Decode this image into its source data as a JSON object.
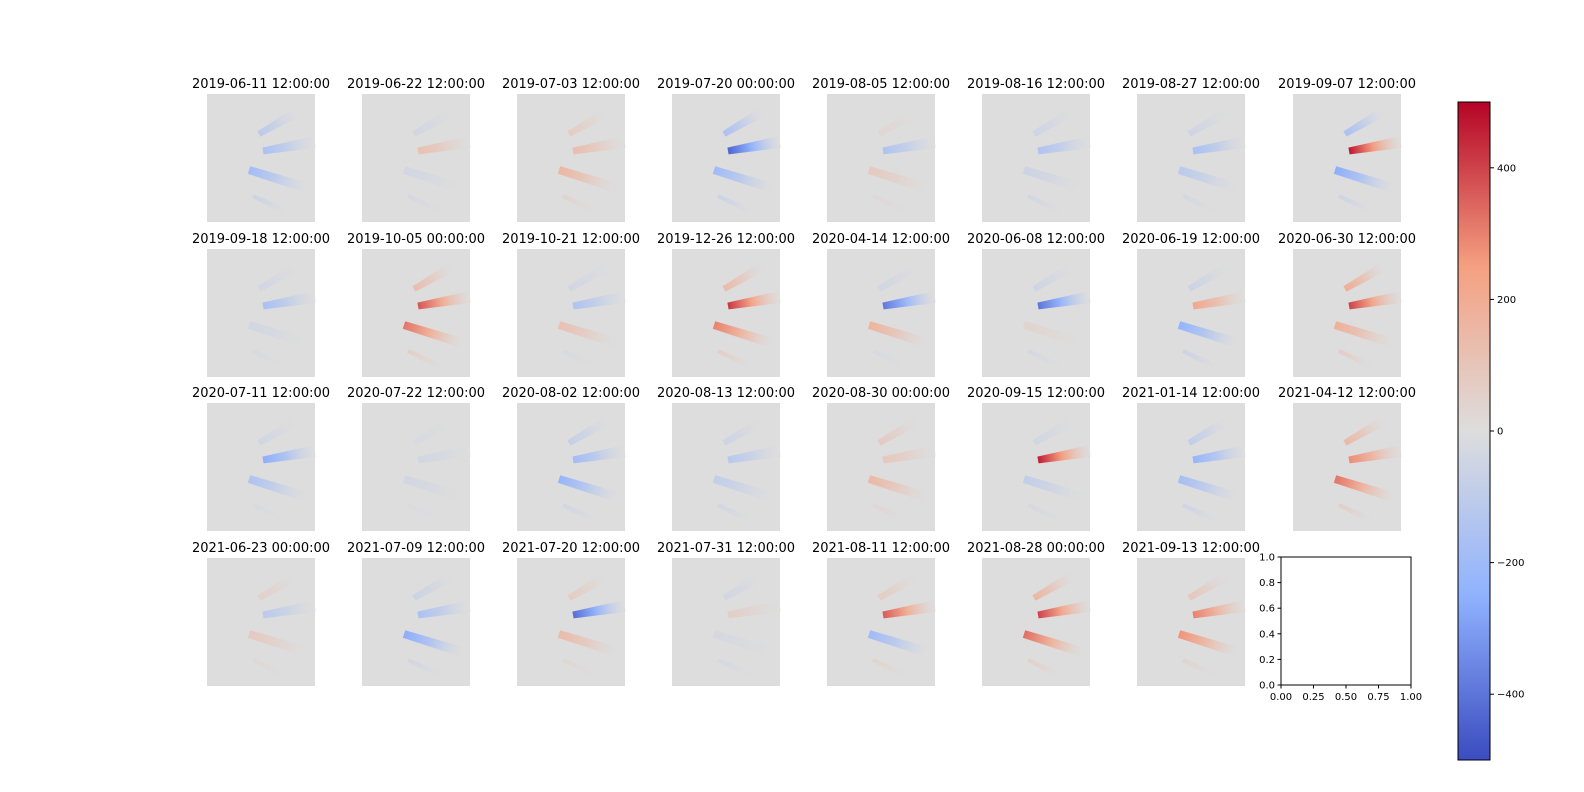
{
  "chart_data": {
    "type": "heatmap",
    "layout": "4x8 grid of image panels with shared colorbar",
    "colormap": "coolwarm",
    "clim": [
      -500,
      500
    ],
    "colorbar": {
      "ticks": [
        400,
        200,
        0,
        -200,
        -400
      ],
      "tick_labels": [
        "400",
        "200",
        "0",
        "−200",
        "−400"
      ]
    },
    "panels": [
      {
        "title": "2019-06-11 12:00:00",
        "intensity": [
          -110,
          -160,
          -190,
          -60
        ]
      },
      {
        "title": "2019-06-22 12:00:00",
        "intensity": [
          -40,
          120,
          -40,
          -30
        ]
      },
      {
        "title": "2019-07-03 12:00:00",
        "intensity": [
          70,
          130,
          160,
          40
        ]
      },
      {
        "title": "2019-07-20 00:00:00",
        "intensity": [
          -160,
          -440,
          -200,
          -60
        ]
      },
      {
        "title": "2019-08-05 12:00:00",
        "intensity": [
          30,
          -150,
          80,
          20
        ]
      },
      {
        "title": "2019-08-16 12:00:00",
        "intensity": [
          -50,
          -150,
          -60,
          -40
        ]
      },
      {
        "title": "2019-08-27 12:00:00",
        "intensity": [
          -50,
          -170,
          -110,
          -30
        ]
      },
      {
        "title": "2019-09-07 12:00:00",
        "intensity": [
          -160,
          470,
          -260,
          -50
        ]
      },
      {
        "title": "2019-09-18 12:00:00",
        "intensity": [
          -40,
          -170,
          -40,
          -20
        ]
      },
      {
        "title": "2019-10-05 00:00:00",
        "intensity": [
          130,
          370,
          320,
          60
        ]
      },
      {
        "title": "2019-10-21 12:00:00",
        "intensity": [
          -40,
          -150,
          120,
          -20
        ]
      },
      {
        "title": "2019-12-26 12:00:00",
        "intensity": [
          140,
          420,
          300,
          60
        ]
      },
      {
        "title": "2020-04-14 12:00:00",
        "intensity": [
          -40,
          -390,
          170,
          -20
        ]
      },
      {
        "title": "2020-06-08 12:00:00",
        "intensity": [
          -50,
          -400,
          40,
          -30
        ]
      },
      {
        "title": "2020-06-19 12:00:00",
        "intensity": [
          -60,
          220,
          -240,
          -60
        ]
      },
      {
        "title": "2020-06-30 12:00:00",
        "intensity": [
          200,
          400,
          190,
          70
        ]
      },
      {
        "title": "2020-07-11 12:00:00",
        "intensity": [
          -40,
          -260,
          -150,
          -20
        ]
      },
      {
        "title": "2020-07-22 12:00:00",
        "intensity": [
          -20,
          -40,
          -40,
          -10
        ]
      },
      {
        "title": "2020-08-02 12:00:00",
        "intensity": [
          -80,
          -190,
          -230,
          -40
        ]
      },
      {
        "title": "2020-08-13 12:00:00",
        "intensity": [
          -50,
          -120,
          -90,
          -40
        ]
      },
      {
        "title": "2020-08-30 00:00:00",
        "intensity": [
          80,
          90,
          150,
          30
        ]
      },
      {
        "title": "2020-09-15 12:00:00",
        "intensity": [
          -40,
          460,
          -90,
          -30
        ]
      },
      {
        "title": "2021-01-14 12:00:00",
        "intensity": [
          -90,
          -230,
          -180,
          -50
        ]
      },
      {
        "title": "2021-04-12 12:00:00",
        "intensity": [
          150,
          280,
          320,
          60
        ]
      },
      {
        "title": "2021-06-23 00:00:00",
        "intensity": [
          50,
          -110,
          80,
          20
        ]
      },
      {
        "title": "2021-07-09 12:00:00",
        "intensity": [
          -60,
          -160,
          -260,
          -40
        ]
      },
      {
        "title": "2021-07-20 12:00:00",
        "intensity": [
          70,
          -420,
          140,
          30
        ]
      },
      {
        "title": "2021-07-31 12:00:00",
        "intensity": [
          -40,
          60,
          -30,
          -30
        ]
      },
      {
        "title": "2021-08-11 12:00:00",
        "intensity": [
          70,
          360,
          -200,
          40
        ]
      },
      {
        "title": "2021-08-28 00:00:00",
        "intensity": [
          160,
          400,
          330,
          50
        ]
      },
      {
        "title": "2021-09-13 12:00:00",
        "intensity": [
          90,
          300,
          270,
          40
        ]
      }
    ],
    "empty_axes": {
      "xlim": [
        0,
        1
      ],
      "ylim": [
        0,
        1
      ],
      "xticks": [
        0,
        0.25,
        0.5,
        0.75,
        1
      ],
      "yticks": [
        0,
        0.2,
        0.4,
        0.6,
        0.8,
        1
      ],
      "xtick_labels": [
        "0.00",
        "0.25",
        "0.50",
        "0.75",
        "1.00"
      ],
      "ytick_labels": [
        "0.0",
        "0.2",
        "0.4",
        "0.6",
        "0.8",
        "1.0"
      ]
    }
  }
}
